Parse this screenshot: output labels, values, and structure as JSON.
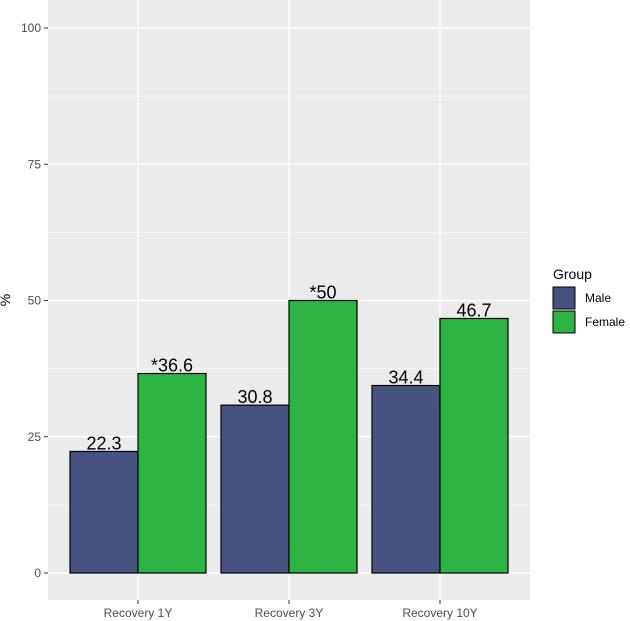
{
  "chart_data": {
    "type": "bar",
    "categories": [
      "Recovery 1Y",
      "Recovery 3Y",
      "Recovery 10Y"
    ],
    "series": [
      {
        "name": "Male",
        "values": [
          22.3,
          30.8,
          34.4
        ],
        "labels": [
          "22.3",
          "30.8",
          "34.4"
        ],
        "color": "#46527f"
      },
      {
        "name": "Female",
        "values": [
          36.6,
          50,
          46.7
        ],
        "labels": [
          "*36.6",
          "*50",
          "46.7"
        ],
        "color": "#2db544"
      }
    ],
    "ylabel": "%",
    "ylim": [
      0,
      100
    ],
    "yticks": [
      0,
      25,
      50,
      75,
      100
    ],
    "grid": true,
    "legend": {
      "title": "Group",
      "position": "right"
    },
    "panel_background": "#ebebeb",
    "bar_outline": "#000000"
  }
}
